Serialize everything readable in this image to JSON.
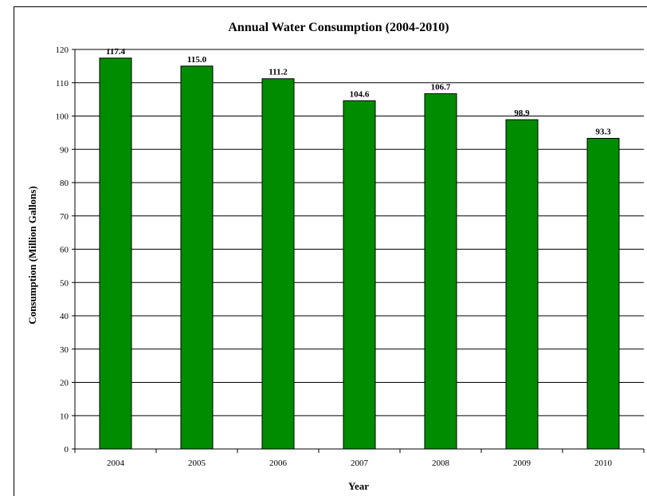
{
  "chart_data": {
    "type": "bar",
    "title": "Annual Water Consumption (2004-2010)",
    "xlabel": "Year",
    "ylabel": "Consumption (Million Gallons)",
    "categories": [
      "2004",
      "2005",
      "2006",
      "2007",
      "2008",
      "2009",
      "2010"
    ],
    "values": [
      117.4,
      115.0,
      111.2,
      104.6,
      106.7,
      98.9,
      93.3
    ],
    "data_labels": [
      "117.4",
      "115.0",
      "111.2",
      "104.6",
      "106.7",
      "98.9",
      "93.3"
    ],
    "ylim": [
      0,
      120
    ],
    "yticks": [
      "0",
      "10",
      "20",
      "30",
      "40",
      "50",
      "60",
      "70",
      "80",
      "90",
      "100",
      "110",
      "120"
    ],
    "grid": true,
    "legend": "none",
    "colors": {
      "bar": "#008c00",
      "bar_edge": "#000000",
      "grid": "#000000",
      "background": "#ffffff"
    }
  }
}
